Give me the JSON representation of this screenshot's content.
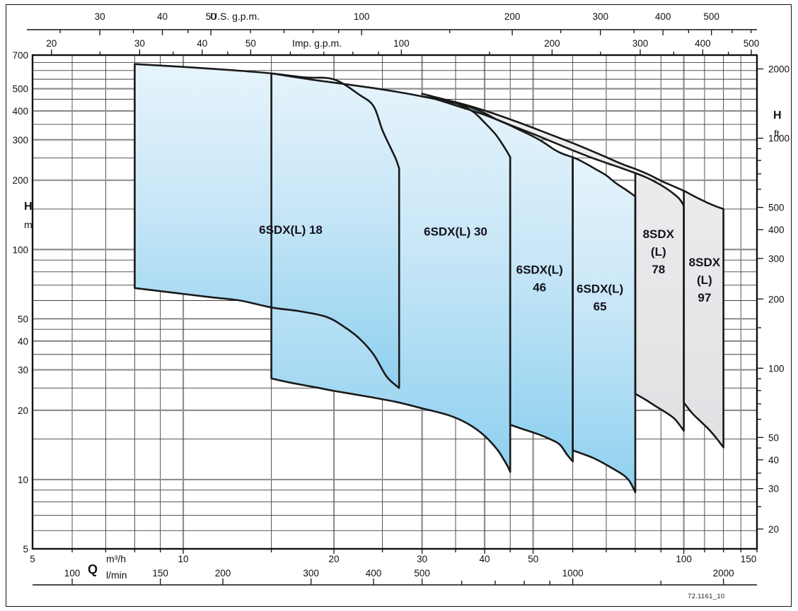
{
  "figure_code": "72.1161_10",
  "labels": {
    "us_unit": "U.S. g.p.m.",
    "imp_unit": "Imp. g.p.m.",
    "h_left": "H",
    "m_left": "m",
    "h_right": "H",
    "ft_right": "ft",
    "q": "Q",
    "m3h_unit": "m³/h",
    "lmin_unit": "l/min"
  },
  "chart_data": {
    "type": "area",
    "description": "Operating range envelopes (flow Q vs head H, log-log) for submersible pump families",
    "xlim_m3h": [
      5,
      140
    ],
    "ylim_m": [
      5,
      700
    ],
    "grid": {
      "x_major": [
        10,
        20,
        30,
        40,
        50,
        100
      ],
      "x_minor": [
        6,
        7,
        8,
        9,
        15,
        25,
        35,
        45,
        60,
        70,
        80,
        90,
        110,
        120,
        130,
        140
      ],
      "y_major": [
        10,
        20,
        30,
        40,
        50,
        100,
        200,
        300,
        400,
        500
      ],
      "y_minor": [
        6,
        7,
        8,
        9,
        15,
        25,
        35,
        45,
        60,
        70,
        80,
        90,
        150,
        250,
        350,
        450,
        550,
        600,
        650
      ]
    },
    "axes": {
      "us_gpm": {
        "unit": "U.S. g.p.m.",
        "factor_per_m3h": 4.40287,
        "major": [
          30,
          40,
          50,
          100,
          200,
          300,
          400,
          500
        ],
        "minor": [
          25,
          35,
          45,
          60,
          70,
          80,
          90,
          150,
          250,
          350,
          450,
          550,
          600
        ]
      },
      "imp_gpm": {
        "unit": "Imp. g.p.m.",
        "factor_per_m3h": 3.66615,
        "major": [
          20,
          30,
          40,
          50,
          100,
          200,
          300,
          400,
          500
        ],
        "minor": [
          25,
          35,
          45,
          60,
          70,
          80,
          90,
          150,
          250,
          350,
          450
        ]
      },
      "m3h": {
        "unit": "m³/h",
        "axis_label": "Q",
        "major": [
          5,
          10,
          20,
          30,
          40,
          50,
          100,
          150
        ]
      },
      "l_min": {
        "unit": "l/min",
        "factor_per_m3h": 16.6667,
        "major": [
          100,
          150,
          200,
          300,
          400,
          500,
          1000,
          2000
        ],
        "minor": [
          600,
          700,
          800,
          900,
          1500
        ]
      },
      "h_m": {
        "unit": "m",
        "axis_label": "H",
        "major": [
          700,
          500,
          400,
          300,
          200,
          100,
          50,
          40,
          30,
          20,
          10,
          5
        ]
      },
      "h_ft": {
        "unit": "ft",
        "axis_label": "H",
        "factor_per_m": 3.28084,
        "major": [
          2000,
          1000,
          500,
          400,
          300,
          200,
          100,
          50,
          40,
          30,
          20
        ],
        "minor": [
          900,
          800,
          700,
          600,
          150,
          90,
          80,
          70,
          60,
          45,
          35,
          25
        ]
      }
    },
    "envelopes": [
      {
        "name": "8SDX(L) 97",
        "label_lines": [
          "8SDX",
          "(L)",
          "97"
        ],
        "label_pos": [
          110,
          74
        ],
        "fill": "gray",
        "flow_range_m3h": [
          30,
          120
        ],
        "head_range_m": [
          13.8,
          475
        ],
        "close_stroke": false,
        "outline": [
          {
            "t": "c",
            "p": [
              [
                30,
                475
              ],
              [
                36,
                430
              ],
              [
                40,
                402
              ],
              [
                45,
                368
              ],
              [
                50,
                338
              ],
              [
                55,
                312
              ],
              [
                60,
                290
              ],
              [
                65,
                270
              ],
              [
                70,
                252
              ],
              [
                75,
                236
              ],
              [
                80,
                224
              ],
              [
                85,
                212
              ],
              [
                90,
                199
              ],
              [
                95,
                189
              ],
              [
                100,
                180
              ],
              [
                104,
                172
              ],
              [
                108,
                165
              ],
              [
                112,
                159
              ],
              [
                116,
                154
              ],
              [
                120,
                150
              ]
            ]
          },
          {
            "t": "l",
            "p": [
              [
                120,
                13.8
              ]
            ]
          },
          {
            "t": "c",
            "p": [
              [
                116,
                15.2
              ],
              [
                112,
                16.6
              ],
              [
                108,
                17.9
              ],
              [
                104,
                19.4
              ],
              [
                100,
                21.6
              ]
            ]
          },
          {
            "t": "l",
            "p": [
              [
                100,
                180
              ]
            ]
          }
        ]
      },
      {
        "name": "8SDX(L) 78",
        "label_lines": [
          "8SDX",
          "(L)",
          "78"
        ],
        "label_pos": [
          89,
          98
        ],
        "fill": "gray",
        "flow_range_m3h": [
          32,
          100
        ],
        "head_range_m": [
          16.3,
          450
        ],
        "close_stroke": false,
        "outline": [
          {
            "t": "c",
            "p": [
              [
                32,
                450
              ],
              [
                36,
                415
              ],
              [
                40,
                385
              ],
              [
                45,
                348
              ],
              [
                50,
                318
              ],
              [
                55,
                292
              ],
              [
                60,
                270
              ],
              [
                65,
                252
              ],
              [
                70,
                238
              ],
              [
                75,
                226
              ],
              [
                80,
                215
              ],
              [
                84,
                206
              ],
              [
                88,
                196
              ],
              [
                92,
                185
              ],
              [
                95,
                176
              ],
              [
                98,
                166
              ],
              [
                100,
                155
              ]
            ]
          },
          {
            "t": "l",
            "p": [
              [
                100,
                16.3
              ]
            ]
          },
          {
            "t": "c",
            "p": [
              [
                96,
                18.3
              ],
              [
                92,
                19.6
              ],
              [
                88,
                20.8
              ],
              [
                84,
                22.2
              ],
              [
                80,
                23.6
              ]
            ]
          },
          {
            "t": "l",
            "p": [
              [
                80,
                215
              ]
            ]
          }
        ]
      },
      {
        "name": "6SDX(L) 65",
        "label_lines": [
          "6SDX(L)",
          "65"
        ],
        "label_pos": [
          68,
          62
        ],
        "fill": "blue",
        "flow_range_m3h": [
          60,
          80
        ],
        "head_range_m": [
          8.8,
          252
        ],
        "close_stroke": true,
        "outline": [
          {
            "t": "c",
            "p": [
              [
                60,
                252
              ],
              [
                62,
                244
              ],
              [
                64.5,
                233
              ],
              [
                67,
                222
              ],
              [
                70,
                210
              ],
              [
                73,
                195
              ],
              [
                76,
                184
              ],
              [
                78,
                177
              ],
              [
                80,
                170
              ]
            ]
          },
          {
            "t": "l",
            "p": [
              [
                80,
                8.8
              ]
            ]
          },
          {
            "t": "c",
            "p": [
              [
                78,
                9.8
              ],
              [
                76,
                10.4
              ],
              [
                73,
                11
              ],
              [
                69,
                11.8
              ],
              [
                66,
                12.4
              ],
              [
                63,
                12.9
              ],
              [
                60,
                13.4
              ]
            ]
          }
        ]
      },
      {
        "name": "6SDX(L) 46",
        "label_lines": [
          "6SDX(L)",
          "46"
        ],
        "label_pos": [
          51.5,
          75
        ],
        "fill": "blue",
        "flow_range_m3h": [
          30,
          60
        ],
        "head_range_m": [
          12,
          463
        ],
        "close_stroke": false,
        "outline": [
          {
            "t": "c",
            "p": [
              [
                30,
                463
              ],
              [
                33,
                447
              ],
              [
                36,
                428
              ],
              [
                37.8,
                412
              ],
              [
                40,
                392
              ],
              [
                42,
                370
              ],
              [
                44.5,
                350
              ],
              [
                46.7,
                333
              ],
              [
                49,
                317
              ],
              [
                51,
                303
              ],
              [
                53,
                288
              ],
              [
                54.8,
                274
              ],
              [
                56.5,
                264
              ],
              [
                58.3,
                257
              ],
              [
                60,
                252
              ]
            ]
          },
          {
            "t": "l",
            "p": [
              [
                60,
                12
              ]
            ]
          },
          {
            "t": "c",
            "p": [
              [
                58.5,
                12.8
              ],
              [
                56.5,
                14.2
              ],
              [
                54,
                15
              ],
              [
                51,
                15.8
              ],
              [
                48,
                16.5
              ],
              [
                45,
                17.3
              ]
            ]
          },
          {
            "t": "l",
            "p": [
              [
                45,
                252
              ]
            ]
          }
        ]
      },
      {
        "name": "6SDX(L) 30",
        "label_lines": [
          "6SDX(L) 30"
        ],
        "label_pos": [
          35,
          120
        ],
        "fill": "blue",
        "flow_range_m3h": [
          15,
          45
        ],
        "head_range_m": [
          10.8,
          583
        ],
        "close_stroke": true,
        "outline": [
          {
            "t": "c",
            "p": [
              [
                15,
                583
              ],
              [
                18,
                548
              ],
              [
                21,
                524
              ],
              [
                24,
                503
              ],
              [
                27,
                483
              ],
              [
                30,
                463
              ],
              [
                33,
                444
              ],
              [
                35.5,
                428
              ],
              [
                38,
                396
              ],
              [
                40,
                356
              ],
              [
                42,
                318
              ],
              [
                43.5,
                285
              ],
              [
                44.5,
                263
              ],
              [
                45,
                252
              ]
            ]
          },
          {
            "t": "l",
            "p": [
              [
                45,
                10.8
              ]
            ]
          },
          {
            "t": "c",
            "p": [
              [
                44.5,
                11.4
              ],
              [
                43.5,
                12.4
              ],
              [
                42.4,
                13.5
              ],
              [
                40,
                15.5
              ],
              [
                37,
                17.5
              ],
              [
                34,
                19
              ],
              [
                30,
                20.4
              ],
              [
                26.5,
                21.8
              ],
              [
                23.2,
                23
              ],
              [
                20,
                24.3
              ],
              [
                18.7,
                25
              ],
              [
                16.5,
                26.3
              ],
              [
                15,
                27.5
              ]
            ]
          }
        ]
      },
      {
        "name": "6SDX(L) 18",
        "label_lines": [
          "6SDX(L) 18"
        ],
        "label_pos": [
          16.4,
          122
        ],
        "fill": "blue",
        "flow_range_m3h": [
          8,
          27
        ],
        "head_range_m": [
          25,
          640
        ],
        "close_stroke": true,
        "outline": [
          {
            "t": "c",
            "p": [
              [
                8,
                640
              ],
              [
                10,
                622
              ],
              [
                12.5,
                602
              ],
              [
                15,
                583
              ],
              [
                17.5,
                560
              ],
              [
                20,
                549
              ],
              [
                22.5,
                470
              ],
              [
                24,
                420
              ],
              [
                25,
                330
              ],
              [
                26,
                275
              ],
              [
                26.6,
                247
              ],
              [
                27,
                225
              ]
            ]
          },
          {
            "t": "l",
            "p": [
              [
                27,
                25
              ]
            ]
          },
          {
            "t": "c",
            "p": [
              [
                25.5,
                28
              ],
              [
                24,
                35
              ],
              [
                22.5,
                41
              ],
              [
                21,
                46
              ],
              [
                19.3,
                51
              ],
              [
                17,
                54
              ],
              [
                15,
                56
              ],
              [
                13,
                60
              ],
              [
                11.4,
                62
              ],
              [
                9.5,
                65
              ],
              [
                8,
                68
              ]
            ]
          }
        ]
      }
    ],
    "colors": {
      "blue_top": "#e7f4fc",
      "blue_mid": "#c7e6f7",
      "blue_bottom": "#8ed0ef",
      "gray_top": "#efeff1",
      "gray_bottom": "#e1e1e4",
      "stroke": "#191919",
      "grid_major": "#8f8f8f",
      "grid_minor": "#3f3f3f",
      "label_text": "#13131c"
    }
  }
}
